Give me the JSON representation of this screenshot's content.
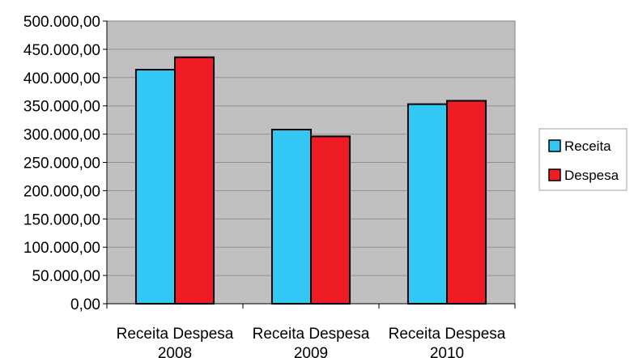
{
  "chart_data": {
    "type": "bar",
    "categories": [
      "Receita Despesa\n2008",
      "Receita Despesa\n2009",
      "Receita Despesa\n2010"
    ],
    "category_lines": [
      [
        "Receita Despesa",
        "2008"
      ],
      [
        "Receita Despesa",
        "2009"
      ],
      [
        "Receita Despesa",
        "2010"
      ]
    ],
    "series": [
      {
        "name": "Receita",
        "color": "#33c7f5",
        "values": [
          414000,
          308000,
          353000
        ]
      },
      {
        "name": "Despesa",
        "color": "#ef1c25",
        "values": [
          436000,
          296000,
          359000
        ]
      }
    ],
    "y_ticks": [
      "0,00",
      "50.000,00",
      "100.000,00",
      "150.000,00",
      "200.000,00",
      "250.000,00",
      "300.000,00",
      "350.000,00",
      "400.000,00",
      "450.000,00",
      "500.000,00"
    ],
    "ylim": [
      0,
      500000
    ],
    "y_step": 50000,
    "plot_background": "#c0c0c0",
    "grid": true,
    "legend_position": "right",
    "title": "",
    "xlabel": "",
    "ylabel": ""
  }
}
